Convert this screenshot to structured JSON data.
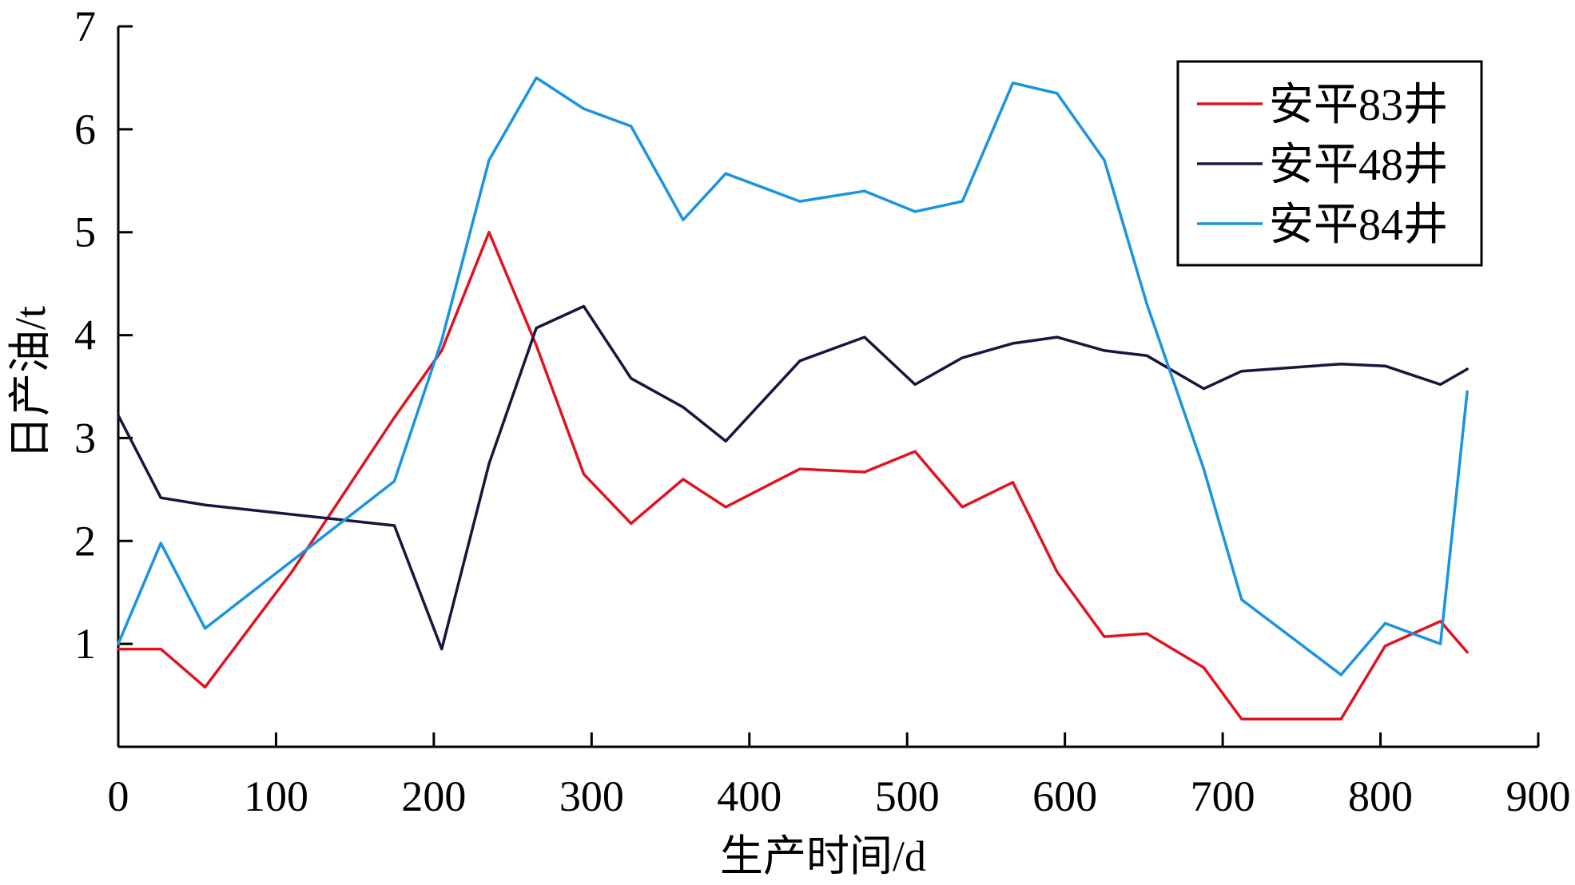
{
  "chart_data": {
    "type": "line",
    "xlabel": "生产时间/d",
    "ylabel": "日产油/t",
    "xlim": [
      0,
      900
    ],
    "ylim": [
      0,
      7
    ],
    "xticks": [
      0,
      100,
      200,
      300,
      400,
      500,
      600,
      700,
      800,
      900
    ],
    "yticks": [
      1,
      2,
      3,
      4,
      5,
      6,
      7
    ],
    "x_tick_labels": [
      "0",
      "100",
      "200",
      "300",
      "400",
      "500",
      "600",
      "700",
      "800",
      "900"
    ],
    "y_tick_labels": [
      "1",
      "2",
      "3",
      "4",
      "5",
      "6",
      "7"
    ],
    "grid": false,
    "legend_position": "top-right",
    "series": [
      {
        "name": "安平83井",
        "color": "#e0141e",
        "points": [
          [
            0,
            0.95
          ],
          [
            27,
            0.95
          ],
          [
            55,
            0.58
          ],
          [
            110,
            1.7
          ],
          [
            175,
            3.2
          ],
          [
            205,
            3.85
          ],
          [
            235,
            5.0
          ],
          [
            265,
            3.9
          ],
          [
            295,
            2.65
          ],
          [
            325,
            2.17
          ],
          [
            358,
            2.6
          ],
          [
            385,
            2.33
          ],
          [
            432,
            2.7
          ],
          [
            473,
            2.67
          ],
          [
            505,
            2.87
          ],
          [
            535,
            2.33
          ],
          [
            567,
            2.57
          ],
          [
            595,
            1.7
          ],
          [
            625,
            1.07
          ],
          [
            652,
            1.1
          ],
          [
            688,
            0.77
          ],
          [
            712,
            0.27
          ],
          [
            775,
            0.27
          ],
          [
            803,
            0.98
          ],
          [
            838,
            1.22
          ],
          [
            855,
            0.92
          ]
        ]
      },
      {
        "name": "安平48井",
        "color": "#16163f",
        "points": [
          [
            0,
            3.22
          ],
          [
            27,
            2.42
          ],
          [
            55,
            2.35
          ],
          [
            175,
            2.15
          ],
          [
            205,
            0.95
          ],
          [
            235,
            2.75
          ],
          [
            265,
            4.07
          ],
          [
            295,
            4.28
          ],
          [
            325,
            3.58
          ],
          [
            358,
            3.3
          ],
          [
            385,
            2.97
          ],
          [
            432,
            3.75
          ],
          [
            473,
            3.98
          ],
          [
            505,
            3.52
          ],
          [
            535,
            3.78
          ],
          [
            567,
            3.92
          ],
          [
            595,
            3.98
          ],
          [
            625,
            3.85
          ],
          [
            652,
            3.8
          ],
          [
            688,
            3.48
          ],
          [
            712,
            3.65
          ],
          [
            775,
            3.72
          ],
          [
            803,
            3.7
          ],
          [
            838,
            3.52
          ],
          [
            855,
            3.67
          ]
        ]
      },
      {
        "name": "安平84井",
        "color": "#1a94e0",
        "points": [
          [
            0,
            1.0
          ],
          [
            27,
            1.98
          ],
          [
            55,
            1.15
          ],
          [
            175,
            2.58
          ],
          [
            205,
            3.95
          ],
          [
            235,
            5.7
          ],
          [
            265,
            6.5
          ],
          [
            295,
            6.2
          ],
          [
            325,
            6.03
          ],
          [
            358,
            5.12
          ],
          [
            385,
            5.57
          ],
          [
            432,
            5.3
          ],
          [
            473,
            5.4
          ],
          [
            505,
            5.2
          ],
          [
            535,
            5.3
          ],
          [
            567,
            6.45
          ],
          [
            595,
            6.35
          ],
          [
            625,
            5.7
          ],
          [
            652,
            4.3
          ],
          [
            688,
            2.7
          ],
          [
            712,
            1.43
          ],
          [
            775,
            0.7
          ],
          [
            803,
            1.2
          ],
          [
            838,
            1.0
          ],
          [
            855,
            3.45
          ]
        ]
      }
    ]
  }
}
